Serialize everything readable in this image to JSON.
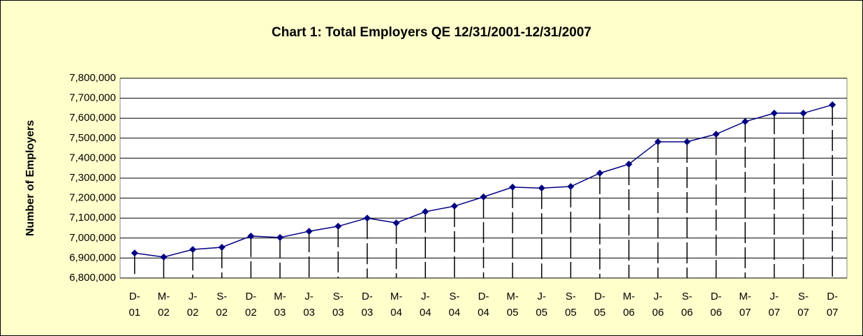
{
  "chart_data": {
    "type": "line",
    "title": "Chart 1: Total Employers QE 12/31/2001-12/31/2007",
    "y_label": "Number of Employers",
    "categories": [
      [
        "D-",
        "01"
      ],
      [
        "M-",
        "02"
      ],
      [
        "J-",
        "02"
      ],
      [
        "S-",
        "02"
      ],
      [
        "D-",
        "02"
      ],
      [
        "M-",
        "03"
      ],
      [
        "J-",
        "03"
      ],
      [
        "S-",
        "03"
      ],
      [
        "D-",
        "03"
      ],
      [
        "M-",
        "04"
      ],
      [
        "J-",
        "04"
      ],
      [
        "S-",
        "04"
      ],
      [
        "D-",
        "04"
      ],
      [
        "M-",
        "05"
      ],
      [
        "J-",
        "05"
      ],
      [
        "S-",
        "05"
      ],
      [
        "D-",
        "05"
      ],
      [
        "M-",
        "06"
      ],
      [
        "J-",
        "06"
      ],
      [
        "S-",
        "06"
      ],
      [
        "D-",
        "06"
      ],
      [
        "M-",
        "07"
      ],
      [
        "J-",
        "07"
      ],
      [
        "S-",
        "07"
      ],
      [
        "D-",
        "07"
      ]
    ],
    "series": [
      {
        "name": "Total Employers",
        "color": "#000080",
        "values": [
          6925000,
          6905000,
          6943000,
          6954000,
          7010000,
          7003000,
          7034000,
          7059000,
          7100000,
          7076000,
          7132000,
          7160000,
          7206000,
          7255000,
          7250000,
          7258000,
          7325000,
          7370000,
          7482000,
          7482000,
          7520000,
          7583000,
          7625000,
          7625000,
          7667000
        ]
      }
    ],
    "ylim": [
      6800000,
      7800000
    ],
    "yticks": [
      {
        "value": 6800000,
        "label": "6,800,000"
      },
      {
        "value": 6900000,
        "label": "6,900,000"
      },
      {
        "value": 7000000,
        "label": "7,000,000"
      },
      {
        "value": 7100000,
        "label": "7,100,000"
      },
      {
        "value": 7200000,
        "label": "7,200,000"
      },
      {
        "value": 7300000,
        "label": "7,300,000"
      },
      {
        "value": 7400000,
        "label": "7,400,000"
      },
      {
        "value": 7500000,
        "label": "7,500,000"
      },
      {
        "value": 7600000,
        "label": "7,600,000"
      },
      {
        "value": 7700000,
        "label": "7,700,000"
      },
      {
        "value": 7800000,
        "label": "7,800,000"
      }
    ],
    "grid": true,
    "drop_lines": true
  }
}
